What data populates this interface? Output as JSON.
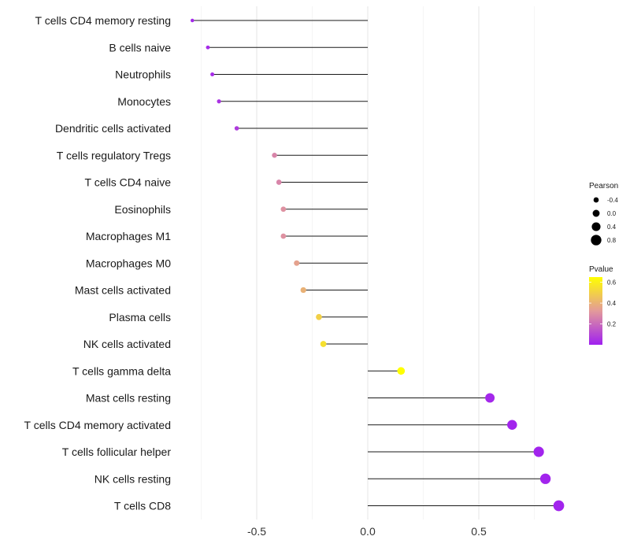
{
  "chart_data": {
    "type": "lollipop",
    "title": "",
    "xlabel": "",
    "ylabel": "",
    "xlim": [
      -0.78,
      0.87
    ],
    "x_ticks": [
      -0.5,
      0.0,
      0.5
    ],
    "x_tick_labels": [
      "-0.5",
      "0.0",
      "0.5"
    ],
    "grid": true,
    "legend_position": "right",
    "categories": [
      "T cells CD4 memory resting",
      "B cells naive",
      "Neutrophils",
      "Monocytes",
      "Dendritic cells activated",
      "T cells regulatory  Tregs ",
      "T cells CD4 naive",
      "Eosinophils",
      "Macrophages M1",
      "Macrophages M0",
      "Mast cells activated",
      "Plasma cells",
      "NK cells activated",
      "T cells gamma delta",
      "Mast cells resting",
      "T cells CD4 memory activated",
      "T cells follicular helper",
      "NK cells resting",
      "T cells CD8"
    ],
    "pearson": [
      -0.79,
      -0.72,
      -0.7,
      -0.67,
      -0.59,
      -0.42,
      -0.4,
      -0.38,
      -0.38,
      -0.32,
      -0.29,
      -0.22,
      -0.2,
      0.15,
      0.55,
      0.65,
      0.77,
      0.8,
      0.86
    ],
    "pvalue": [
      0.02,
      0.03,
      0.03,
      0.05,
      0.07,
      0.27,
      0.27,
      0.3,
      0.3,
      0.35,
      0.4,
      0.5,
      0.55,
      0.65,
      0.02,
      0.01,
      0.01,
      0.01,
      0.01
    ],
    "size_legend": {
      "title": "Pearson",
      "labels": [
        "-0.4",
        "0.0",
        "0.4",
        "0.8"
      ]
    },
    "color_legend": {
      "title": "Pvalue",
      "labels": [
        "0.6",
        "0.4",
        "0.2"
      ],
      "label_values": [
        0.6,
        0.4,
        0.2
      ],
      "range": [
        0.0,
        0.65
      ],
      "low_color": "#a020f0",
      "mid_color": "#e39a9a",
      "high_color": "#ffff00"
    }
  }
}
